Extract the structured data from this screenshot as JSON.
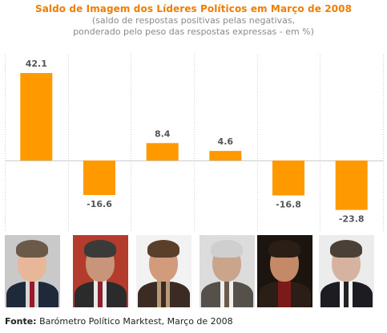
{
  "chart_data": {
    "type": "bar",
    "title": "Saldo de Imagem dos Líderes Políticos em Março de 2008",
    "subtitle_lines": [
      "(saldo de respostas positivas pelas negativas,",
      "ponderado pelo peso das respostas expressas - em %)"
    ],
    "value_labels": [
      "42.1",
      "-16.6",
      "8.4",
      "4.6",
      "-16.8",
      "-23.8"
    ],
    "values": [
      42.1,
      -16.6,
      8.4,
      4.6,
      -16.8,
      -23.8
    ],
    "categories": [
      "",
      "",
      "",
      "",
      "",
      ""
    ],
    "ylim": [
      -27,
      48
    ],
    "grid": "vertical-dotted",
    "legend": "none",
    "bar_color": "#ff9900"
  },
  "photos": [
    {
      "bg": "#c9c9c9",
      "skin": "#e8b79a",
      "hair": "#6b5a4a",
      "suit": "#1e2a3a",
      "shirt": "#d7d7d7",
      "tie": "#9a1a2a"
    },
    {
      "bg": "#b33c2c",
      "skin": "#c9957a",
      "hair": "#3a3a3a",
      "suit": "#2b2b2b",
      "shirt": "#e9e9e9",
      "tie": "#8f2030"
    },
    {
      "bg": "#f2f2f2",
      "skin": "#d29c7c",
      "hair": "#5a3f2a",
      "suit": "#3b2b22",
      "shirt": "#b99a78",
      "tie": "#3b2b22"
    },
    {
      "bg": "#dcdcdc",
      "skin": "#c9a58c",
      "hair": "#cfcfcf",
      "suit": "#55504a",
      "shirt": "#efefef",
      "tie": "#6a5a4a"
    },
    {
      "bg": "#1c140e",
      "skin": "#c48a68",
      "hair": "#2a1e16",
      "suit": "#2a1e16",
      "shirt": "#7a1a1a",
      "tie": "#7a1a1a"
    },
    {
      "bg": "#ececec",
      "skin": "#d5b3a0",
      "hair": "#4a4038",
      "suit": "#1c1c22",
      "shirt": "#f5f5f5",
      "tie": "#222222"
    }
  ],
  "source": {
    "label": "Fonte:",
    "text": " Barómetro Político Marktest, Março de 2008"
  }
}
